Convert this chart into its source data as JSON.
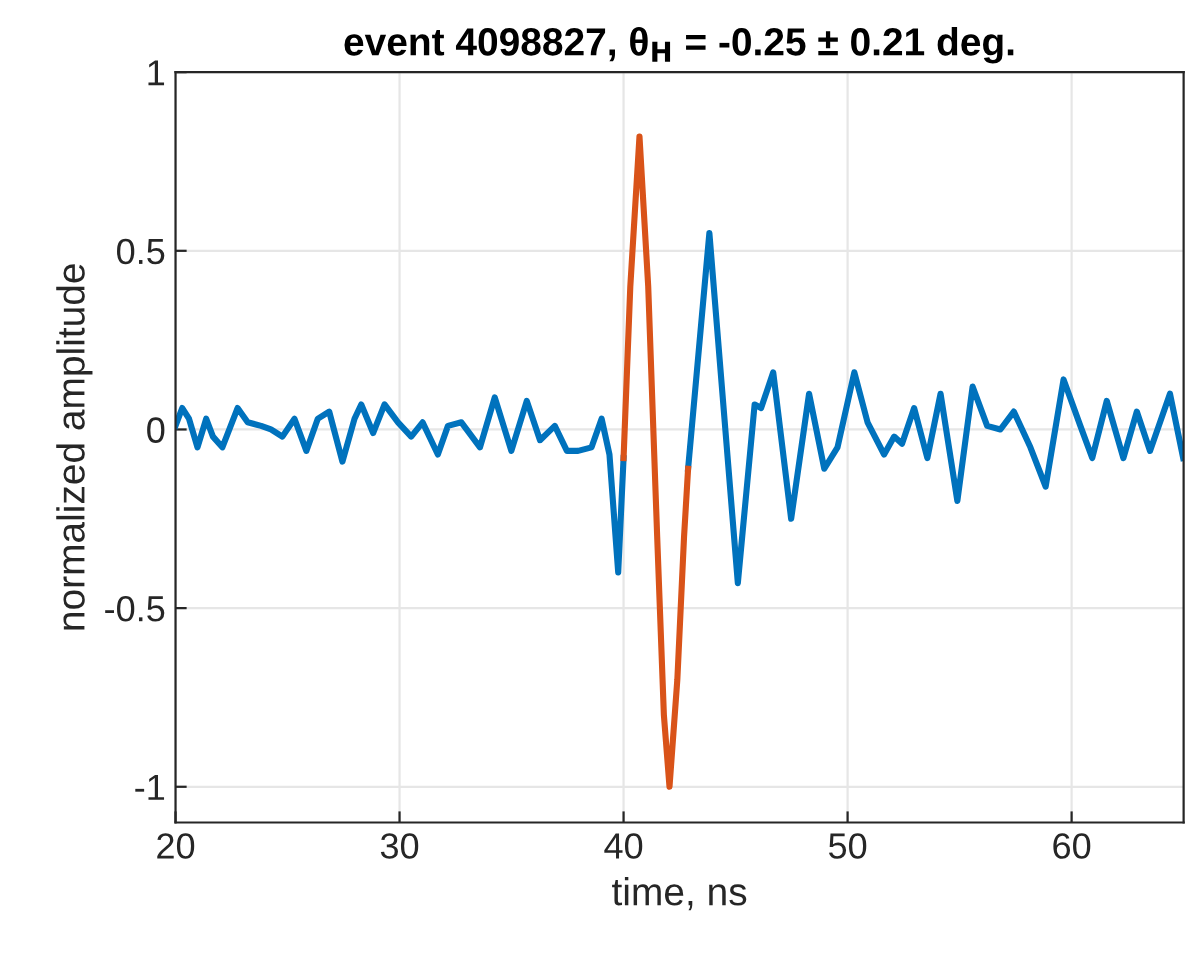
{
  "chart_data": {
    "type": "line",
    "title": "event 4098827, θ$_{H}$ = -0.25 ± 0.21 deg.",
    "xlabel": "time, ns",
    "ylabel": "normalized amplitude",
    "series": [
      {
        "color": "#0072bd",
        "x": [
          20.0,
          20.3,
          20.6,
          20.98,
          21.37,
          21.67,
          22.09,
          22.77,
          23.22,
          23.82,
          24.26,
          24.77,
          25.31,
          25.84,
          26.35,
          26.86,
          27.45,
          27.99,
          28.29,
          28.82,
          29.33,
          29.93,
          30.52,
          31.03,
          31.71,
          32.16,
          32.76,
          33.59,
          34.25,
          34.99,
          35.68,
          36.27,
          36.93,
          37.47,
          37.97,
          38.57,
          39.02,
          39.37,
          39.76,
          40.0,
          41.5,
          42.88,
          43.83,
          45.1,
          45.85,
          46.14,
          46.68,
          47.48,
          48.28,
          48.96,
          49.55,
          50.3,
          50.89,
          51.63,
          52.08,
          52.43,
          52.97,
          53.56,
          54.15,
          54.9,
          55.58,
          56.23,
          56.82,
          57.42,
          58.16,
          58.84,
          59.64,
          60.39,
          60.92,
          61.57,
          62.31,
          62.91,
          63.5,
          64.39,
          64.98
        ],
        "values": [
          0.01,
          0.06,
          0.03,
          -0.05,
          0.03,
          -0.02,
          -0.05,
          0.06,
          0.02,
          0.01,
          0.0,
          -0.02,
          0.03,
          -0.06,
          0.03,
          0.05,
          -0.09,
          0.03,
          0.07,
          -0.01,
          0.07,
          0.02,
          -0.02,
          0.02,
          -0.07,
          0.01,
          0.02,
          -0.05,
          0.09,
          -0.06,
          0.08,
          -0.03,
          0.01,
          -0.06,
          -0.06,
          -0.05,
          0.03,
          -0.07,
          -0.4,
          -0.08,
          null,
          -0.11,
          0.55,
          -0.43,
          0.07,
          0.06,
          0.16,
          -0.25,
          0.1,
          -0.11,
          -0.05,
          0.16,
          0.02,
          -0.07,
          -0.02,
          -0.04,
          0.06,
          -0.08,
          0.1,
          -0.2,
          0.12,
          0.01,
          0.0,
          0.05,
          -0.05,
          -0.16,
          0.14,
          0.01,
          -0.08,
          0.08,
          -0.08,
          0.05,
          -0.06,
          0.1,
          -0.08
        ]
      },
      {
        "color": "#d95319",
        "x": [
          40.0,
          40.3,
          40.71,
          41.1,
          41.5,
          41.8,
          42.05,
          42.4,
          42.7,
          42.88
        ],
        "values": [
          -0.08,
          0.4,
          0.82,
          0.4,
          -0.3,
          -0.8,
          -1.0,
          -0.7,
          -0.3,
          -0.11
        ]
      }
    ],
    "xlim": [
      20,
      65
    ],
    "ylim": [
      -1.1,
      1
    ],
    "xticks": [
      20,
      30,
      40,
      50,
      60
    ],
    "yticks": [
      -1,
      -0.5,
      0,
      0.5,
      1
    ],
    "grid": true,
    "line_style": "solid",
    "marker": "none"
  }
}
